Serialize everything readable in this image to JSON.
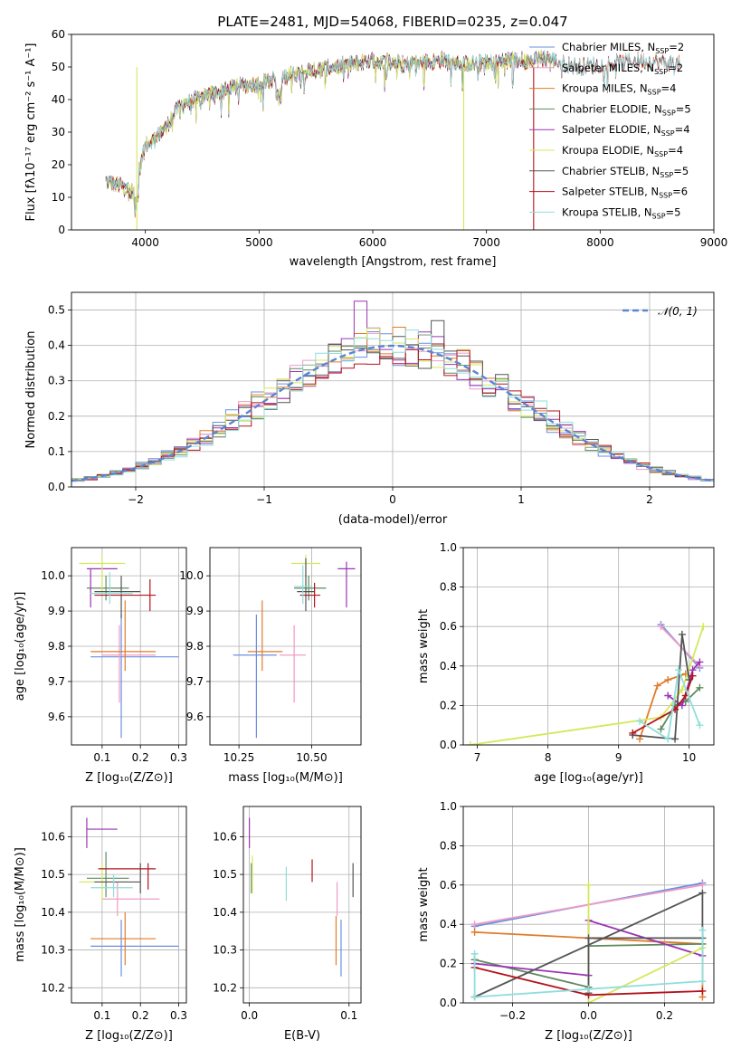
{
  "figure": {
    "title": "PLATE=2481, MJD=54068, FIBERID=0235, z=0.047"
  },
  "colors": {
    "Chabrier MILES": "#6b8fe0",
    "Salpeter MILES": "#f09bc5",
    "Kroupa MILES": "#e07b2a",
    "Chabrier ELODIE": "#5f8a5f",
    "Salpeter ELODIE": "#9b35b5",
    "Kroupa ELODIE": "#d4e85a",
    "Chabrier STELIB": "#555555",
    "Salpeter STELIB": "#b5121b",
    "Kroupa STELIB": "#8fdedc",
    "normal": "#5a84d6"
  },
  "chart_data": [
    {
      "id": "spectrum",
      "type": "line",
      "title": "PLATE=2481, MJD=54068, FIBERID=0235, z=0.047",
      "xlabel": "wavelength [Angstrom, rest frame]",
      "ylabel": "Flux [fλ10⁻¹⁷ erg cm⁻² s⁻¹ A⁻¹]",
      "xlim": [
        3350,
        9000
      ],
      "ylim": [
        0,
        60
      ],
      "xticks": [
        4000,
        5000,
        6000,
        7000,
        8000,
        9000
      ],
      "yticks": [
        0,
        10,
        20,
        30,
        40,
        50,
        60
      ],
      "grid": false,
      "legend_position": "top-right",
      "series": [
        {
          "name": "Chabrier MILES, N",
          "sub": "SSP",
          "suffix": "=2"
        },
        {
          "name": "Salpeter MILES, N",
          "sub": "SSP",
          "suffix": "=2"
        },
        {
          "name": "Kroupa MILES, N",
          "sub": "SSP",
          "suffix": "=4"
        },
        {
          "name": "Chabrier ELODIE, N",
          "sub": "SSP",
          "suffix": "=5"
        },
        {
          "name": "Salpeter ELODIE, N",
          "sub": "SSP",
          "suffix": "=4"
        },
        {
          "name": "Kroupa ELODIE, N",
          "sub": "SSP",
          "suffix": "=4"
        },
        {
          "name": "Chabrier STELIB, N",
          "sub": "SSP",
          "suffix": "=5"
        },
        {
          "name": "Salpeter STELIB, N",
          "sub": "SSP",
          "suffix": "=6"
        },
        {
          "name": "Kroupa STELIB, N",
          "sub": "SSP",
          "suffix": "=5"
        }
      ],
      "continuum": [
        [
          3650,
          15
        ],
        [
          3900,
          12
        ],
        [
          4000,
          26
        ],
        [
          4150,
          30
        ],
        [
          4300,
          38
        ],
        [
          4500,
          41
        ],
        [
          4800,
          44
        ],
        [
          5000,
          45
        ],
        [
          5200,
          47
        ],
        [
          5500,
          49
        ],
        [
          5800,
          51
        ],
        [
          6000,
          52
        ],
        [
          6300,
          51
        ],
        [
          6600,
          52
        ],
        [
          6900,
          51
        ],
        [
          7200,
          52
        ],
        [
          7420,
          52
        ],
        [
          7500,
          53
        ],
        [
          7800,
          50
        ],
        [
          8100,
          51
        ],
        [
          8300,
          52
        ],
        [
          8700,
          51
        ]
      ]
    },
    {
      "id": "residuals",
      "type": "histogram",
      "xlabel": "(data-model)/error",
      "ylabel": "Normed distribution",
      "xlim": [
        -2.5,
        2.5
      ],
      "ylim": [
        0,
        0.55
      ],
      "xticks": [
        -2,
        -1,
        0,
        1,
        2
      ],
      "yticks": [
        0.0,
        0.1,
        0.2,
        0.3,
        0.4,
        0.5
      ],
      "grid": true,
      "legend": [
        "𝒩(0, 1)"
      ],
      "legend_position": "top-right",
      "bin_width": 0.1
    },
    {
      "id": "age-vs-Z",
      "type": "scatter",
      "xlabel": "Z [log₁₀(Z/Z⊙)]",
      "ylabel": "age  [log₁₀(age/yr)]",
      "xlim": [
        0.02,
        0.32
      ],
      "ylim": [
        9.52,
        10.08
      ],
      "xticks": [
        0.1,
        0.2,
        0.3
      ],
      "yticks": [
        9.6,
        9.7,
        9.8,
        9.9,
        10.0
      ],
      "grid": true,
      "points": [
        {
          "series": "Chabrier MILES",
          "x": 0.15,
          "y": 9.77,
          "xerr": [
            0.07,
            0.3
          ],
          "yerr": [
            9.54,
            9.89
          ]
        },
        {
          "series": "Salpeter MILES",
          "x": 0.145,
          "y": 9.775,
          "xerr": [
            0.1,
            0.24
          ],
          "yerr": [
            9.64,
            9.86
          ]
        },
        {
          "series": "Kroupa MILES",
          "x": 0.16,
          "y": 9.785,
          "xerr": [
            0.07,
            0.24
          ],
          "yerr": [
            9.73,
            9.93
          ]
        },
        {
          "series": "Chabrier ELODIE",
          "x": 0.11,
          "y": 9.965,
          "xerr": [
            0.06,
            0.17
          ],
          "yerr": [
            9.93,
            10.0
          ]
        },
        {
          "series": "Salpeter ELODIE",
          "x": 0.07,
          "y": 10.02,
          "xerr": [
            0.06,
            0.14
          ],
          "yerr": [
            9.91,
            10.02
          ]
        },
        {
          "series": "Kroupa ELODIE",
          "x": 0.1,
          "y": 10.035,
          "xerr": [
            0.04,
            0.16
          ],
          "yerr": [
            9.95,
            10.06
          ]
        },
        {
          "series": "Chabrier STELIB",
          "x": 0.15,
          "y": 9.955,
          "xerr": [
            0.08,
            0.2
          ],
          "yerr": [
            9.88,
            10.0
          ]
        },
        {
          "series": "Salpeter STELIB",
          "x": 0.225,
          "y": 9.945,
          "xerr": [
            0.08,
            0.24
          ],
          "yerr": [
            9.9,
            9.99
          ]
        },
        {
          "series": "Kroupa STELIB",
          "x": 0.12,
          "y": 9.95,
          "xerr": [
            0.07,
            0.18
          ],
          "yerr": [
            9.92,
            10.01
          ]
        }
      ]
    },
    {
      "id": "age-vs-mass",
      "type": "scatter",
      "xlabel": "mass [log₁₀(M/M⊙)]",
      "ylabel": "",
      "xlim": [
        10.15,
        10.67
      ],
      "ylim": [
        9.52,
        10.08
      ],
      "xticks": [
        10.25,
        10.5
      ],
      "xticklabels": [
        "10.25",
        "10.50"
      ],
      "yticks": [
        9.6,
        9.7,
        9.8,
        9.9,
        10.0
      ],
      "grid": true,
      "points": [
        {
          "series": "Chabrier MILES",
          "x": 10.31,
          "y": 9.775,
          "xerr": [
            10.23,
            10.38
          ],
          "yerr": [
            9.54,
            9.89
          ]
        },
        {
          "series": "Salpeter MILES",
          "x": 10.44,
          "y": 9.775,
          "xerr": [
            10.39,
            10.48
          ],
          "yerr": [
            9.64,
            9.86
          ]
        },
        {
          "series": "Kroupa MILES",
          "x": 10.33,
          "y": 9.785,
          "xerr": [
            10.28,
            10.4
          ],
          "yerr": [
            9.73,
            9.93
          ]
        },
        {
          "series": "Chabrier ELODIE",
          "x": 10.49,
          "y": 9.965,
          "xerr": [
            10.44,
            10.55
          ],
          "yerr": [
            9.93,
            10.0
          ]
        },
        {
          "series": "Salpeter ELODIE",
          "x": 10.62,
          "y": 10.02,
          "xerr": [
            10.59,
            10.65
          ],
          "yerr": [
            9.91,
            10.04
          ]
        },
        {
          "series": "Kroupa ELODIE",
          "x": 10.48,
          "y": 10.035,
          "xerr": [
            10.43,
            10.53
          ],
          "yerr": [
            9.95,
            10.06
          ]
        },
        {
          "series": "Chabrier STELIB",
          "x": 10.48,
          "y": 9.955,
          "xerr": [
            10.45,
            10.51
          ],
          "yerr": [
            9.9,
            10.05
          ]
        },
        {
          "series": "Salpeter STELIB",
          "x": 10.51,
          "y": 9.945,
          "xerr": [
            10.46,
            10.53
          ],
          "yerr": [
            9.91,
            9.98
          ]
        },
        {
          "series": "Kroupa STELIB",
          "x": 10.47,
          "y": 9.97,
          "xerr": [
            10.44,
            10.5
          ],
          "yerr": [
            9.92,
            10.03
          ]
        }
      ]
    },
    {
      "id": "massweight-vs-age",
      "type": "line",
      "xlabel": "age  [log₁₀(age/yr)]",
      "ylabel": "mass weight",
      "xlim": [
        6.8,
        10.35
      ],
      "ylim": [
        0,
        1
      ],
      "xticks": [
        7,
        8,
        9,
        10
      ],
      "yticks": [
        0.0,
        0.2,
        0.4,
        0.6,
        0.8,
        1.0
      ],
      "grid": true,
      "series": [
        {
          "name": "Chabrier MILES",
          "x": [
            9.6,
            10.15
          ],
          "y": [
            0.61,
            0.39
          ]
        },
        {
          "name": "Salpeter MILES",
          "x": [
            9.6,
            10.15
          ],
          "y": [
            0.6,
            0.4
          ]
        },
        {
          "name": "Kroupa MILES",
          "x": [
            9.3,
            9.55,
            9.7,
            9.95
          ],
          "y": [
            0.03,
            0.3,
            0.33,
            0.36
          ]
        },
        {
          "name": "Chabrier ELODIE",
          "x": [
            9.6,
            9.8,
            9.95,
            10.15
          ],
          "y": [
            0.08,
            0.2,
            0.22,
            0.29
          ]
        },
        {
          "name": "Salpeter ELODIE",
          "x": [
            9.7,
            9.9,
            10.05,
            10.15
          ],
          "y": [
            0.25,
            0.2,
            0.38,
            0.42
          ]
        },
        {
          "name": "Kroupa ELODIE",
          "x": [
            6.9,
            9.6,
            9.9,
            10.2
          ],
          "y": [
            0.0,
            0.14,
            0.28,
            0.6
          ]
        },
        {
          "name": "Chabrier STELIB",
          "x": [
            9.2,
            9.8,
            9.9,
            10.0
          ],
          "y": [
            0.05,
            0.03,
            0.56,
            0.33
          ]
        },
        {
          "name": "Salpeter STELIB",
          "x": [
            9.2,
            9.8,
            9.95,
            10.05
          ],
          "y": [
            0.06,
            0.18,
            0.25,
            0.35
          ]
        },
        {
          "name": "Kroupa STELIB",
          "x": [
            9.3,
            9.7,
            9.85,
            10.15
          ],
          "y": [
            0.12,
            0.03,
            0.38,
            0.1
          ]
        }
      ]
    },
    {
      "id": "mass-vs-Z",
      "type": "scatter",
      "xlabel": "Z [log₁₀(Z/Z⊙)]",
      "ylabel": "mass [log₁₀(M/M⊙)]",
      "xlim": [
        0.02,
        0.32
      ],
      "ylim": [
        10.16,
        10.68
      ],
      "xticks": [
        0.1,
        0.2,
        0.3
      ],
      "yticks": [
        10.2,
        10.3,
        10.4,
        10.5,
        10.6
      ],
      "grid": true,
      "points": [
        {
          "series": "Chabrier MILES",
          "x": 0.15,
          "y": 10.31,
          "xerr": [
            0.07,
            0.3
          ],
          "yerr": [
            10.23,
            10.38
          ]
        },
        {
          "series": "Salpeter MILES",
          "x": 0.14,
          "y": 10.435,
          "xerr": [
            0.1,
            0.25
          ],
          "yerr": [
            10.39,
            10.48
          ]
        },
        {
          "series": "Kroupa MILES",
          "x": 0.16,
          "y": 10.33,
          "xerr": [
            0.07,
            0.24
          ],
          "yerr": [
            10.26,
            10.4
          ]
        },
        {
          "series": "Chabrier ELODIE",
          "x": 0.11,
          "y": 10.49,
          "xerr": [
            0.06,
            0.17
          ],
          "yerr": [
            10.44,
            10.56
          ]
        },
        {
          "series": "Salpeter ELODIE",
          "x": 0.06,
          "y": 10.62,
          "xerr": [
            0.06,
            0.14
          ],
          "yerr": [
            10.57,
            10.65
          ]
        },
        {
          "series": "Kroupa ELODIE",
          "x": 0.1,
          "y": 10.48,
          "xerr": [
            0.04,
            0.16
          ],
          "yerr": [
            10.43,
            10.53
          ]
        },
        {
          "series": "Chabrier STELIB",
          "x": 0.2,
          "y": 10.48,
          "xerr": [
            0.08,
            0.2
          ],
          "yerr": [
            10.45,
            10.53
          ]
        },
        {
          "series": "Salpeter STELIB",
          "x": 0.22,
          "y": 10.515,
          "xerr": [
            0.09,
            0.24
          ],
          "yerr": [
            10.46,
            10.53
          ]
        },
        {
          "series": "Kroupa STELIB",
          "x": 0.13,
          "y": 10.465,
          "xerr": [
            0.07,
            0.18
          ],
          "yerr": [
            10.44,
            10.5
          ]
        }
      ]
    },
    {
      "id": "mass-vs-ebv",
      "type": "scatter",
      "xlabel": "E(B-V)",
      "ylabel": "",
      "xlim": [
        -0.006,
        0.112
      ],
      "ylim": [
        10.16,
        10.68
      ],
      "xticks": [
        0.0,
        0.1
      ],
      "xticklabels": [
        "0.0",
        "0.1"
      ],
      "yticks": [
        10.2,
        10.3,
        10.4,
        10.5,
        10.6
      ],
      "grid": true,
      "points": [
        {
          "series": "Chabrier MILES",
          "x": 0.092,
          "y": 10.31,
          "yerr": [
            10.23,
            10.38
          ]
        },
        {
          "series": "Salpeter MILES",
          "x": 0.088,
          "y": 10.435,
          "yerr": [
            10.39,
            10.48
          ]
        },
        {
          "series": "Kroupa MILES",
          "x": 0.087,
          "y": 10.33,
          "yerr": [
            10.26,
            10.39
          ]
        },
        {
          "series": "Chabrier ELODIE",
          "x": 0.002,
          "y": 10.49,
          "yerr": [
            10.45,
            10.53
          ]
        },
        {
          "series": "Salpeter ELODIE",
          "x": 0.0,
          "y": 10.62,
          "yerr": [
            10.57,
            10.65
          ]
        },
        {
          "series": "Kroupa ELODIE",
          "x": 0.003,
          "y": 10.5,
          "yerr": [
            10.45,
            10.55
          ]
        },
        {
          "series": "Chabrier STELIB",
          "x": 0.104,
          "y": 10.49,
          "yerr": [
            10.44,
            10.53
          ]
        },
        {
          "series": "Salpeter STELIB",
          "x": 0.063,
          "y": 10.51,
          "yerr": [
            10.48,
            10.54
          ]
        },
        {
          "series": "Kroupa STELIB",
          "x": 0.037,
          "y": 10.475,
          "yerr": [
            10.43,
            10.52
          ]
        }
      ]
    },
    {
      "id": "massweight-vs-Z",
      "type": "line",
      "xlabel": "Z [log₁₀(Z/Z⊙)]",
      "ylabel": "mass weight",
      "xlim": [
        -0.33,
        0.33
      ],
      "ylim": [
        0,
        1
      ],
      "xticks": [
        -0.2,
        0.0,
        0.2
      ],
      "xticklabels": [
        "−0.2",
        "0.0",
        "0.2"
      ],
      "yticks": [
        0.0,
        0.2,
        0.4,
        0.6,
        0.8,
        1.0
      ],
      "grid": true,
      "series": [
        {
          "name": "Chabrier MILES",
          "x": [
            -0.3,
            0.3
          ],
          "y": [
            0.39,
            0.61
          ]
        },
        {
          "name": "Salpeter MILES",
          "x": [
            -0.3,
            0.3
          ],
          "y": [
            0.4,
            0.6
          ]
        },
        {
          "name": "Kroupa MILES",
          "x": [
            -0.3,
            0.3,
            0.3
          ],
          "y": [
            0.36,
            0.3,
            0.03
          ]
        },
        {
          "name": "Chabrier ELODIE",
          "x": [
            -0.3,
            0.0,
            0.0,
            0.3
          ],
          "y": [
            0.22,
            0.08,
            0.29,
            0.3
          ]
        },
        {
          "name": "Salpeter ELODIE",
          "x": [
            -0.3,
            0.0,
            0.0,
            0.3
          ],
          "y": [
            0.2,
            0.14,
            0.42,
            0.24
          ]
        },
        {
          "name": "Kroupa ELODIE",
          "x": [
            0.0,
            0.0,
            0.3
          ],
          "y": [
            0.6,
            0.0,
            0.28
          ]
        },
        {
          "name": "Chabrier STELIB",
          "x": [
            -0.3,
            0.3,
            0.3,
            0.0,
            0.0
          ],
          "y": [
            0.03,
            0.56,
            0.33,
            0.33,
            0.05
          ]
        },
        {
          "name": "Salpeter STELIB",
          "x": [
            -0.3,
            0.0,
            0.3
          ],
          "y": [
            0.18,
            0.04,
            0.06
          ]
        },
        {
          "name": "Kroupa STELIB",
          "x": [
            -0.3,
            -0.3,
            0.0,
            0.3,
            0.3
          ],
          "y": [
            0.25,
            0.03,
            0.07,
            0.11,
            0.37
          ]
        }
      ]
    }
  ]
}
